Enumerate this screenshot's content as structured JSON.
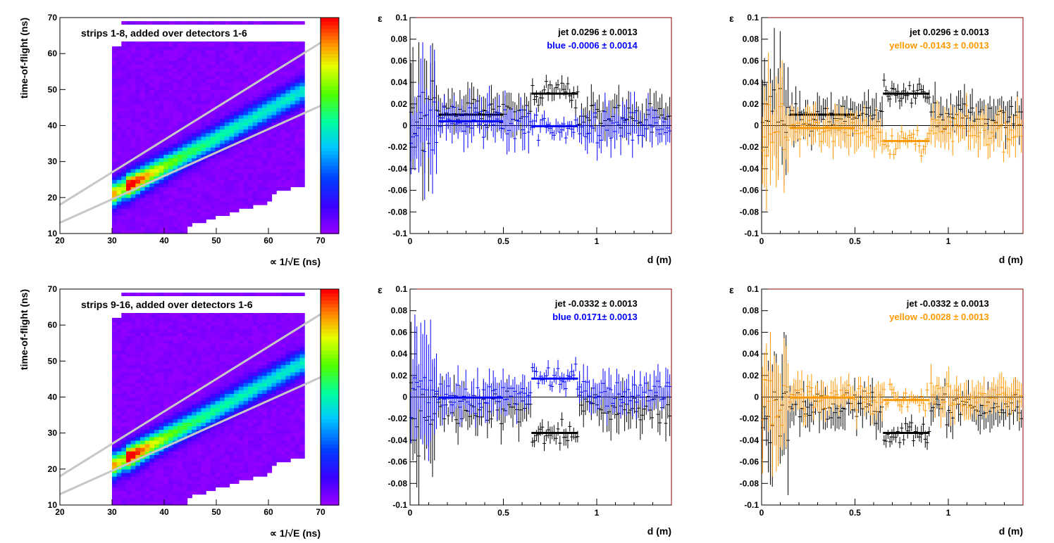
{
  "colors": {
    "jet": "#000000",
    "blue": "#0000ff",
    "yellow": "#ff9900",
    "frame": "#8b0000"
  },
  "chart_data": [
    {
      "type": "heatmap",
      "title": "strips 1-8, added over detectors 1-6",
      "xlabel": "∝ 1/√E (ns)",
      "ylabel": "time-of-flight (ns)",
      "xlim": [
        20,
        70
      ],
      "ylim": [
        10,
        70
      ],
      "xticks": [
        "20",
        "30",
        "40",
        "50",
        "60",
        "70"
      ],
      "yticks": [
        "10",
        "20",
        "30",
        "40",
        "50",
        "60",
        "70"
      ],
      "bands": [
        {
          "x": [
            20,
            70
          ],
          "y": [
            18,
            63
          ]
        },
        {
          "x": [
            20,
            70
          ],
          "y": [
            13,
            45.5
          ]
        }
      ],
      "ridge": {
        "x_start": 33,
        "y_start": 23,
        "x_end": 66,
        "y_end": 49
      },
      "colorscale": "rainbow"
    },
    {
      "type": "scatter",
      "xlabel": "d (m)",
      "ylabel": "ε",
      "xlim": [
        0,
        1.4
      ],
      "ylim": [
        -0.1,
        0.1
      ],
      "xticks": [
        "0",
        "0.5",
        "1"
      ],
      "yticks": [
        "-0.1",
        "-0.08",
        "-0.06",
        "-0.04",
        "-0.02",
        "0",
        "0.02",
        "0.04",
        "0.06",
        "0.08",
        "0.1"
      ],
      "annotations": [
        {
          "name": "jet",
          "text": "jet  0.0296 ± 0.0013"
        },
        {
          "name": "blue",
          "text": "blue -0.0006 ± 0.0014"
        }
      ],
      "series": [
        {
          "name": "jet",
          "fits": [
            {
              "x": [
                0.15,
                0.5
              ],
              "y": 0.0101
            },
            {
              "x": [
                0.65,
                0.9
              ],
              "y": 0.0296
            }
          ]
        },
        {
          "name": "blue",
          "fits": [
            {
              "x": [
                0.15,
                0.5
              ],
              "y": 0.004
            },
            {
              "x": [
                0.65,
                0.9
              ],
              "y": -0.0006
            }
          ]
        }
      ]
    },
    {
      "type": "scatter",
      "xlabel": "d (m)",
      "ylabel": "ε",
      "xlim": [
        0,
        1.4
      ],
      "ylim": [
        -0.1,
        0.1
      ],
      "xticks": [
        "0",
        "0.5",
        "1"
      ],
      "yticks": [
        "-0.1",
        "-0.08",
        "-0.06",
        "-0.04",
        "-0.02",
        "0",
        "0.02",
        "0.04",
        "0.06",
        "0.08",
        "0.1"
      ],
      "annotations": [
        {
          "name": "jet",
          "text": "jet  0.0296 ± 0.0013"
        },
        {
          "name": "yellow",
          "text": "yellow -0.0143 ± 0.0013"
        }
      ],
      "series": [
        {
          "name": "jet",
          "fits": [
            {
              "x": [
                0.15,
                0.5
              ],
              "y": 0.0101
            },
            {
              "x": [
                0.65,
                0.9
              ],
              "y": 0.0296
            }
          ]
        },
        {
          "name": "yellow",
          "fits": [
            {
              "x": [
                0.15,
                0.5
              ],
              "y": -0.0023
            },
            {
              "x": [
                0.65,
                0.9
              ],
              "y": -0.0143
            }
          ]
        }
      ]
    },
    {
      "type": "heatmap",
      "title": "strips 9-16, added over detectors 1-6",
      "xlabel": "∝ 1/√E (ns)",
      "ylabel": "time-of-flight (ns)",
      "xlim": [
        20,
        70
      ],
      "ylim": [
        10,
        70
      ],
      "xticks": [
        "20",
        "30",
        "40",
        "50",
        "60",
        "70"
      ],
      "yticks": [
        "10",
        "20",
        "30",
        "40",
        "50",
        "60",
        "70"
      ],
      "bands": [
        {
          "x": [
            20,
            70
          ],
          "y": [
            18,
            63
          ]
        },
        {
          "x": [
            20,
            70
          ],
          "y": [
            13,
            45.5
          ]
        }
      ],
      "ridge": {
        "x_start": 33,
        "y_start": 23,
        "x_end": 66,
        "y_end": 49
      },
      "colorscale": "rainbow"
    },
    {
      "type": "scatter",
      "xlabel": "d (m)",
      "ylabel": "ε",
      "xlim": [
        0,
        1.4
      ],
      "ylim": [
        -0.1,
        0.1
      ],
      "xticks": [
        "0",
        "0.5",
        "1"
      ],
      "yticks": [
        "-0.1",
        "-0.08",
        "-0.06",
        "-0.04",
        "-0.02",
        "0",
        "0.02",
        "0.04",
        "0.06",
        "0.08",
        "0.1"
      ],
      "annotations": [
        {
          "name": "jet",
          "text": "jet -0.0332 ± 0.0013"
        },
        {
          "name": "blue",
          "text": "blue  0.0171± 0.0013"
        }
      ],
      "series": [
        {
          "name": "jet",
          "fits": [
            {
              "x": [
                0.65,
                0.9
              ],
              "y": -0.0332
            }
          ]
        },
        {
          "name": "blue",
          "fits": [
            {
              "x": [
                0.15,
                0.5
              ],
              "y": -0.0005
            },
            {
              "x": [
                0.65,
                0.9
              ],
              "y": 0.0171
            }
          ]
        }
      ]
    },
    {
      "type": "scatter",
      "xlabel": "d (m)",
      "ylabel": "ε",
      "xlim": [
        0,
        1.4
      ],
      "ylim": [
        -0.1,
        0.1
      ],
      "xticks": [
        "0",
        "0.5",
        "1"
      ],
      "yticks": [
        "-0.1",
        "-0.08",
        "-0.06",
        "-0.04",
        "-0.02",
        "0",
        "0.02",
        "0.04",
        "0.06",
        "0.08",
        "0.1"
      ],
      "annotations": [
        {
          "name": "jet",
          "text": "jet -0.0332 ± 0.0013"
        },
        {
          "name": "yellow",
          "text": "yellow -0.0028 ± 0.0013"
        }
      ],
      "series": [
        {
          "name": "jet",
          "fits": [
            {
              "x": [
                0.65,
                0.9
              ],
              "y": -0.0332
            }
          ]
        },
        {
          "name": "yellow",
          "fits": [
            {
              "x": [
                0.15,
                0.5
              ],
              "y": -0.0005
            },
            {
              "x": [
                0.65,
                0.9
              ],
              "y": -0.0028
            }
          ]
        }
      ]
    }
  ]
}
